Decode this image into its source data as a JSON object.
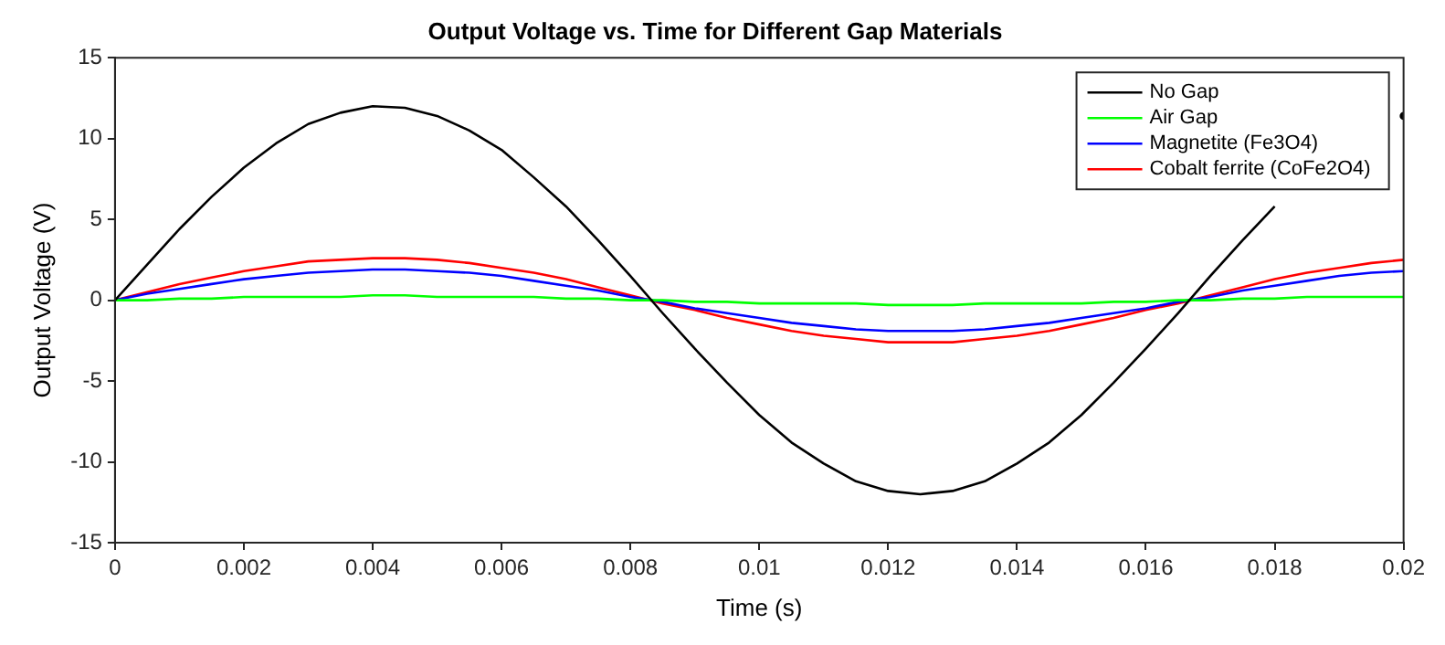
{
  "chart_data": {
    "type": "line",
    "title": "Output Voltage vs. Time for Different Gap Materials",
    "xlabel": "Time (s)",
    "ylabel": "Output Voltage (V)",
    "x": [
      0,
      0.0005,
      0.001,
      0.0015,
      0.002,
      0.0025,
      0.003,
      0.0035,
      0.004,
      0.0045,
      0.005,
      0.0055,
      0.006,
      0.0065,
      0.007,
      0.0075,
      0.008,
      0.0085,
      0.009,
      0.0095,
      0.01,
      0.0105,
      0.011,
      0.0115,
      0.012,
      0.0125,
      0.013,
      0.0135,
      0.014,
      0.0145,
      0.015,
      0.0155,
      0.016,
      0.0165,
      0.017,
      0.0175,
      0.018,
      0.0185,
      0.019,
      0.0195,
      0.02
    ],
    "series": [
      {
        "name": "No Gap",
        "color": "#000000",
        "values": [
          0,
          2.2,
          4.4,
          6.4,
          8.2,
          9.7,
          10.9,
          11.6,
          12,
          11.9,
          11.4,
          10.5,
          9.3,
          7.6,
          5.8,
          3.7,
          1.5,
          -0.8,
          -3,
          -5.1,
          -7.1,
          -8.8,
          -10.1,
          -11.2,
          -11.8,
          -12,
          -11.8,
          -11.2,
          -10.1,
          -8.8,
          -7.1,
          -5.1,
          -3,
          -0.8,
          1.5,
          3.7,
          5.8,
          null,
          null,
          null,
          11.4
        ]
      },
      {
        "name": "Air Gap",
        "color": "#00ff00",
        "values": [
          0,
          0,
          0.1,
          0.1,
          0.2,
          0.2,
          0.2,
          0.2,
          0.3,
          0.3,
          0.2,
          0.2,
          0.2,
          0.2,
          0.1,
          0.1,
          0,
          0,
          -0.1,
          -0.1,
          -0.2,
          -0.2,
          -0.2,
          -0.2,
          -0.3,
          -0.3,
          -0.3,
          -0.2,
          -0.2,
          -0.2,
          -0.2,
          -0.1,
          -0.1,
          0,
          0,
          0.1,
          0.1,
          0.2,
          0.2,
          0.2,
          0.2
        ]
      },
      {
        "name": "Magnetite (Fe3O4)",
        "color": "#0000ff",
        "values": [
          0,
          0.4,
          0.7,
          1.0,
          1.3,
          1.5,
          1.7,
          1.8,
          1.9,
          1.9,
          1.8,
          1.7,
          1.5,
          1.2,
          0.9,
          0.6,
          0.2,
          -0.1,
          -0.5,
          -0.8,
          -1.1,
          -1.4,
          -1.6,
          -1.8,
          -1.9,
          -1.9,
          -1.9,
          -1.8,
          -1.6,
          -1.4,
          -1.1,
          -0.8,
          -0.5,
          -0.1,
          0.2,
          0.6,
          0.9,
          1.2,
          1.5,
          1.7,
          1.8
        ]
      },
      {
        "name": "Cobalt ferrite (CoFe2O4)",
        "color": "#ff0000",
        "values": [
          0,
          0.5,
          1.0,
          1.4,
          1.8,
          2.1,
          2.4,
          2.5,
          2.6,
          2.6,
          2.5,
          2.3,
          2.0,
          1.7,
          1.3,
          0.8,
          0.3,
          -0.2,
          -0.6,
          -1.1,
          -1.5,
          -1.9,
          -2.2,
          -2.4,
          -2.6,
          -2.6,
          -2.6,
          -2.4,
          -2.2,
          -1.9,
          -1.5,
          -1.1,
          -0.6,
          -0.2,
          0.3,
          0.8,
          1.3,
          1.7,
          2.0,
          2.3,
          2.5
        ]
      }
    ],
    "xlim": [
      0,
      0.02
    ],
    "xticks": [
      0,
      0.002,
      0.004,
      0.006,
      0.008,
      0.01,
      0.012,
      0.014,
      0.016,
      0.018,
      0.02
    ],
    "ylim": [
      -15,
      15
    ],
    "yticks": [
      -15,
      -10,
      -5,
      0,
      5,
      10,
      15
    ],
    "grid": false,
    "legend": "top right",
    "line_style": "solid",
    "marker": "none"
  }
}
